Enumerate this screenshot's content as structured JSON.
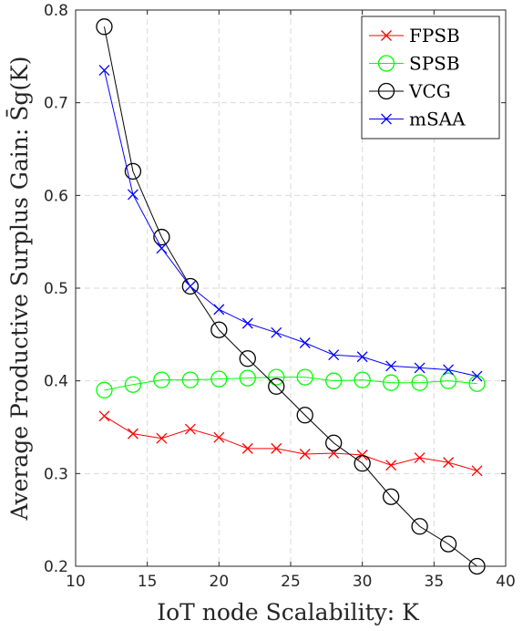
{
  "chart_data": {
    "type": "line",
    "xlabel": "IoT node Scalability: K",
    "ylabel": "Average Productive Surplus Gain: S̄g(K)",
    "xlim": [
      10,
      40
    ],
    "ylim": [
      0.2,
      0.8
    ],
    "xticks": [
      10,
      15,
      20,
      25,
      30,
      35,
      40
    ],
    "yticks": [
      0.2,
      0.3,
      0.4,
      0.5,
      0.6,
      0.7,
      0.8
    ],
    "x": [
      12,
      14,
      16,
      18,
      20,
      22,
      24,
      26,
      28,
      30,
      32,
      34,
      36,
      38
    ],
    "grid": true,
    "legend_position": "top-right",
    "series": [
      {
        "name": "FPSB",
        "color": "#ff0000",
        "marker": "x",
        "values": [
          0.362,
          0.343,
          0.338,
          0.348,
          0.339,
          0.327,
          0.327,
          0.321,
          0.322,
          0.32,
          0.309,
          0.317,
          0.312,
          0.303
        ]
      },
      {
        "name": "SPSB",
        "color": "#00ff00",
        "marker": "o",
        "values": [
          0.39,
          0.396,
          0.401,
          0.401,
          0.402,
          0.403,
          0.404,
          0.404,
          0.4,
          0.401,
          0.398,
          0.398,
          0.4,
          0.397
        ]
      },
      {
        "name": "VCG",
        "color": "#000000",
        "marker": "o",
        "values": [
          0.782,
          0.626,
          0.555,
          0.502,
          0.455,
          0.424,
          0.394,
          0.363,
          0.333,
          0.311,
          0.275,
          0.243,
          0.224,
          0.2
        ]
      },
      {
        "name": "mSAA",
        "color": "#0000ff",
        "marker": "x",
        "values": [
          0.735,
          0.601,
          0.543,
          0.502,
          0.477,
          0.462,
          0.452,
          0.441,
          0.428,
          0.426,
          0.416,
          0.414,
          0.412,
          0.405
        ]
      }
    ]
  }
}
